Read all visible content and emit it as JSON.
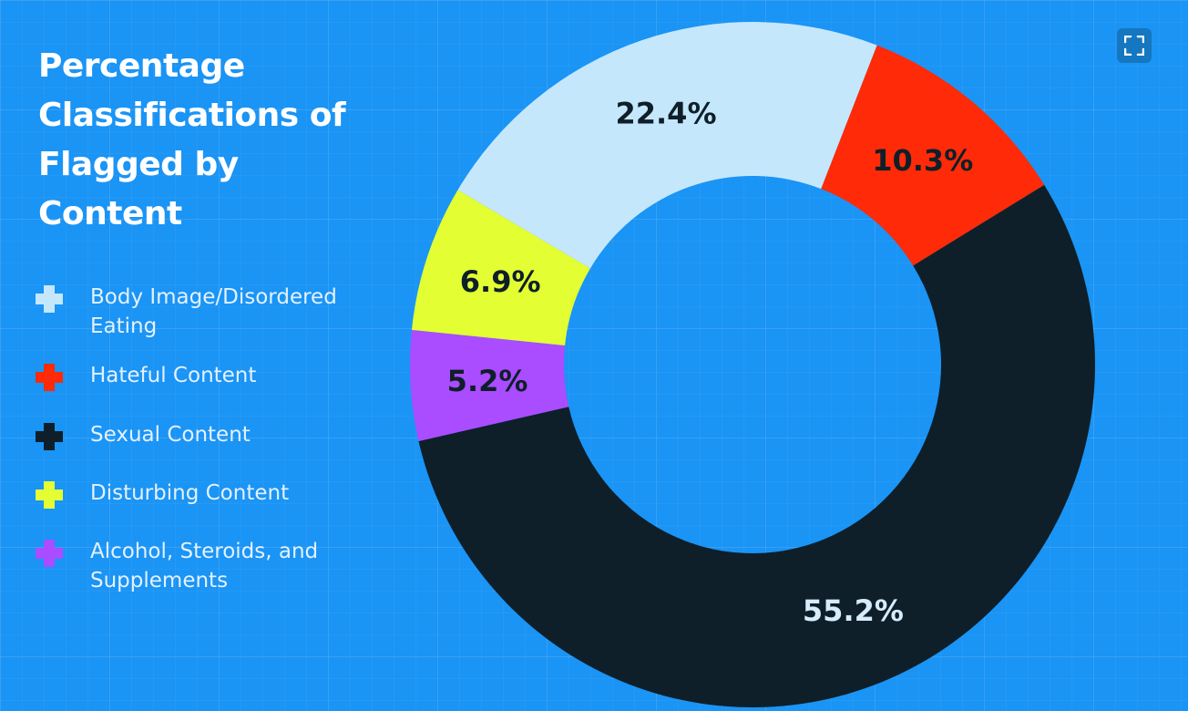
{
  "chart_data": {
    "type": "pie",
    "title": "Percentage Classifications of Flagged by Content",
    "categories": [
      "Body Image/Disordered Eating",
      "Hateful Content",
      "Sexual Content",
      "Disturbing Content",
      "Alcohol, Steroids, and Supplements"
    ],
    "values": [
      22.4,
      10.3,
      55.2,
      6.9,
      5.2
    ],
    "value_labels": [
      "22.4%",
      "10.3%",
      "55.2%",
      "6.9%",
      "5.2%"
    ],
    "colors": [
      "#c5e7fc",
      "#ff2a07",
      "#0e1f29",
      "#e3ff33",
      "#aa4cff"
    ],
    "label_colors": [
      "#0e1f29",
      "#0e1f29",
      "#d6ecfb",
      "#0e1f29",
      "#0e1f29"
    ],
    "style": "donut",
    "legend_position": "left"
  },
  "toolbar": {
    "expand_icon": "expand-icon"
  },
  "background_color": "#1a94f5"
}
